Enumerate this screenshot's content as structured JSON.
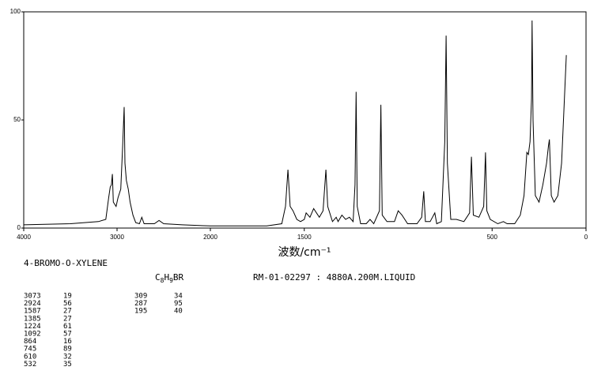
{
  "chart_data": {
    "type": "line",
    "xlabel": "波数/cm⁻¹",
    "xlim": [
      4000,
      0
    ],
    "x_scale_break": 2000,
    "ylim": [
      0,
      100
    ],
    "xticks": [
      4000,
      3000,
      2000,
      1500,
      500,
      0
    ],
    "yticks": [
      0,
      50,
      100
    ],
    "color": "#000000",
    "x": [
      4000,
      3500,
      3200,
      3120,
      3090,
      3073,
      3060,
      3050,
      3040,
      3010,
      2990,
      2960,
      2940,
      2924,
      2915,
      2900,
      2880,
      2860,
      2830,
      2800,
      2760,
      2735,
      2710,
      2600,
      2550,
      2500,
      2300,
      2000,
      1700,
      1620,
      1600,
      1587,
      1575,
      1560,
      1540,
      1520,
      1500,
      1490,
      1470,
      1450,
      1420,
      1400,
      1385,
      1375,
      1350,
      1330,
      1320,
      1300,
      1280,
      1260,
      1240,
      1230,
      1224,
      1218,
      1200,
      1170,
      1150,
      1130,
      1100,
      1092,
      1085,
      1060,
      1020,
      1000,
      980,
      950,
      900,
      875,
      864,
      855,
      830,
      805,
      795,
      770,
      752,
      745,
      738,
      720,
      690,
      650,
      620,
      610,
      600,
      570,
      545,
      535,
      528,
      510,
      470,
      440,
      420,
      380,
      350,
      330,
      315,
      307,
      298,
      290,
      287,
      282,
      270,
      250,
      230,
      210,
      200,
      195,
      185,
      170,
      150,
      130,
      115,
      105
    ],
    "values": [
      1.5,
      2,
      3,
      4,
      14,
      19,
      20,
      25,
      12,
      10,
      14,
      18,
      38,
      56,
      30,
      22,
      18,
      12,
      6,
      2.5,
      2,
      5,
      2,
      2,
      3.5,
      2,
      1.5,
      1,
      1,
      2,
      10,
      27,
      10,
      8,
      4,
      3,
      4,
      7,
      5,
      9,
      5,
      8,
      27,
      10,
      3,
      5,
      3,
      6,
      4,
      5,
      3,
      20,
      63,
      10,
      2,
      2,
      4,
      2,
      8,
      57,
      6,
      3,
      3,
      8,
      6,
      2,
      2,
      5,
      17,
      3,
      3,
      7,
      2,
      3,
      40,
      89,
      30,
      4,
      4,
      3,
      7,
      33,
      6,
      5,
      10,
      35,
      8,
      4,
      2,
      3,
      2,
      2,
      6,
      15,
      35,
      34,
      40,
      60,
      96,
      50,
      15,
      12,
      20,
      30,
      38,
      41,
      15,
      12,
      15,
      30,
      60,
      80
    ]
  },
  "compound": "4-BROMO-O-XYLENE",
  "formula": [
    "C",
    "8",
    "H",
    "9",
    "BR"
  ],
  "sample": "RM-01-02297 : 4880A.200M.LIQUID",
  "peaks": [
    [
      3073,
      19
    ],
    [
      2924,
      56
    ],
    [
      1587,
      27
    ],
    [
      1385,
      27
    ],
    [
      1224,
      61
    ],
    [
      1092,
      57
    ],
    [
      864,
      16
    ],
    [
      745,
      89
    ],
    [
      610,
      32
    ],
    [
      532,
      35
    ],
    [
      309,
      34
    ],
    [
      287,
      95
    ],
    [
      195,
      40
    ]
  ]
}
